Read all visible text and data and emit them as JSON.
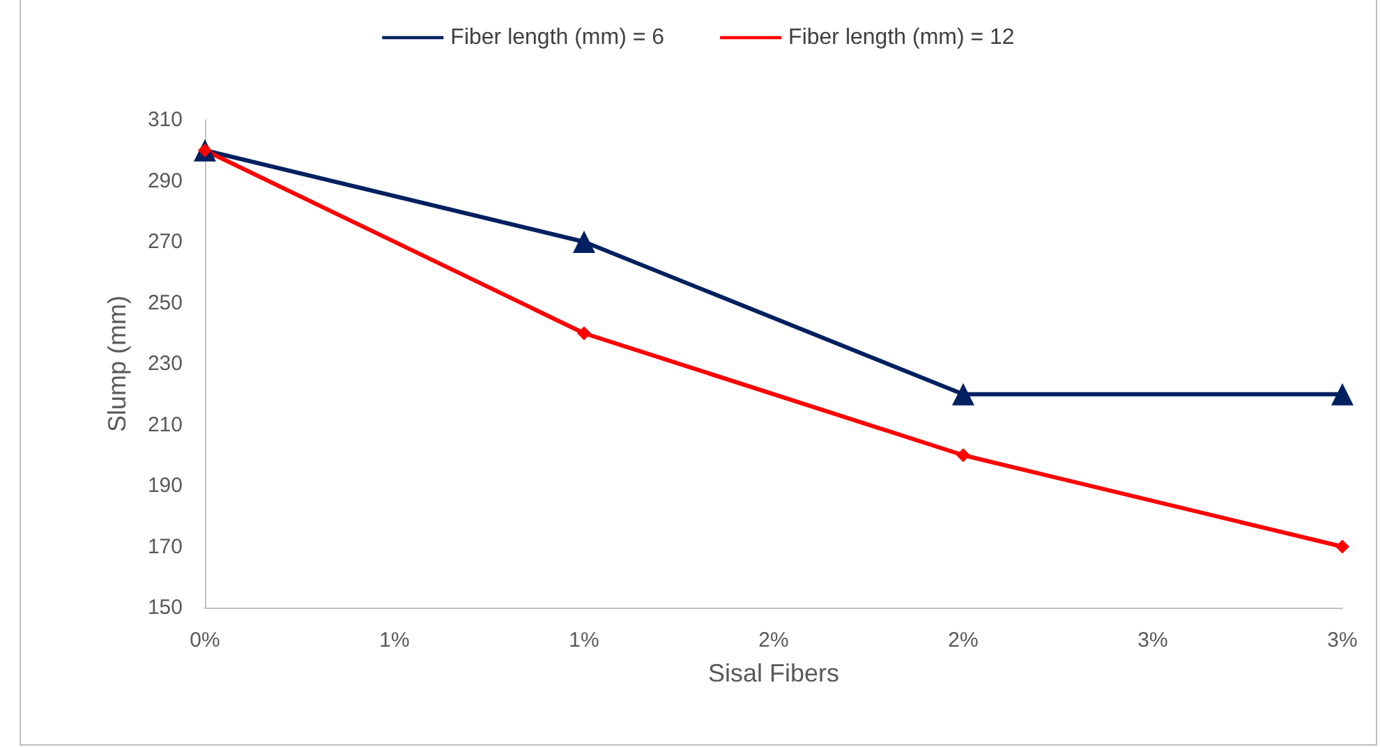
{
  "chart_data": {
    "type": "line",
    "xlabel": "Sisal Fibers",
    "ylabel": "Slump (mm)",
    "xlim": [
      0,
      3
    ],
    "xticks": [
      {
        "value": 0,
        "label": "0%"
      },
      {
        "value": 0.5,
        "label": "1%"
      },
      {
        "value": 1,
        "label": "1%"
      },
      {
        "value": 1.5,
        "label": "2%"
      },
      {
        "value": 2,
        "label": "2%"
      },
      {
        "value": 2.5,
        "label": "3%"
      },
      {
        "value": 3,
        "label": "3%"
      }
    ],
    "ylim": [
      150,
      310
    ],
    "yticks": [
      150,
      170,
      190,
      210,
      230,
      250,
      270,
      290,
      310
    ],
    "x": [
      0,
      1,
      2,
      3
    ],
    "series": [
      {
        "name": "Fiber length (mm) = 6",
        "color": "#002060",
        "marker": "triangle",
        "values": [
          300,
          270,
          220,
          220
        ]
      },
      {
        "name": "Fiber length (mm) = 12",
        "color": "#ff0000",
        "marker": "diamond",
        "values": [
          300,
          240,
          200,
          170
        ]
      }
    ],
    "grid": false,
    "legend": "top",
    "line_style": "solid"
  }
}
